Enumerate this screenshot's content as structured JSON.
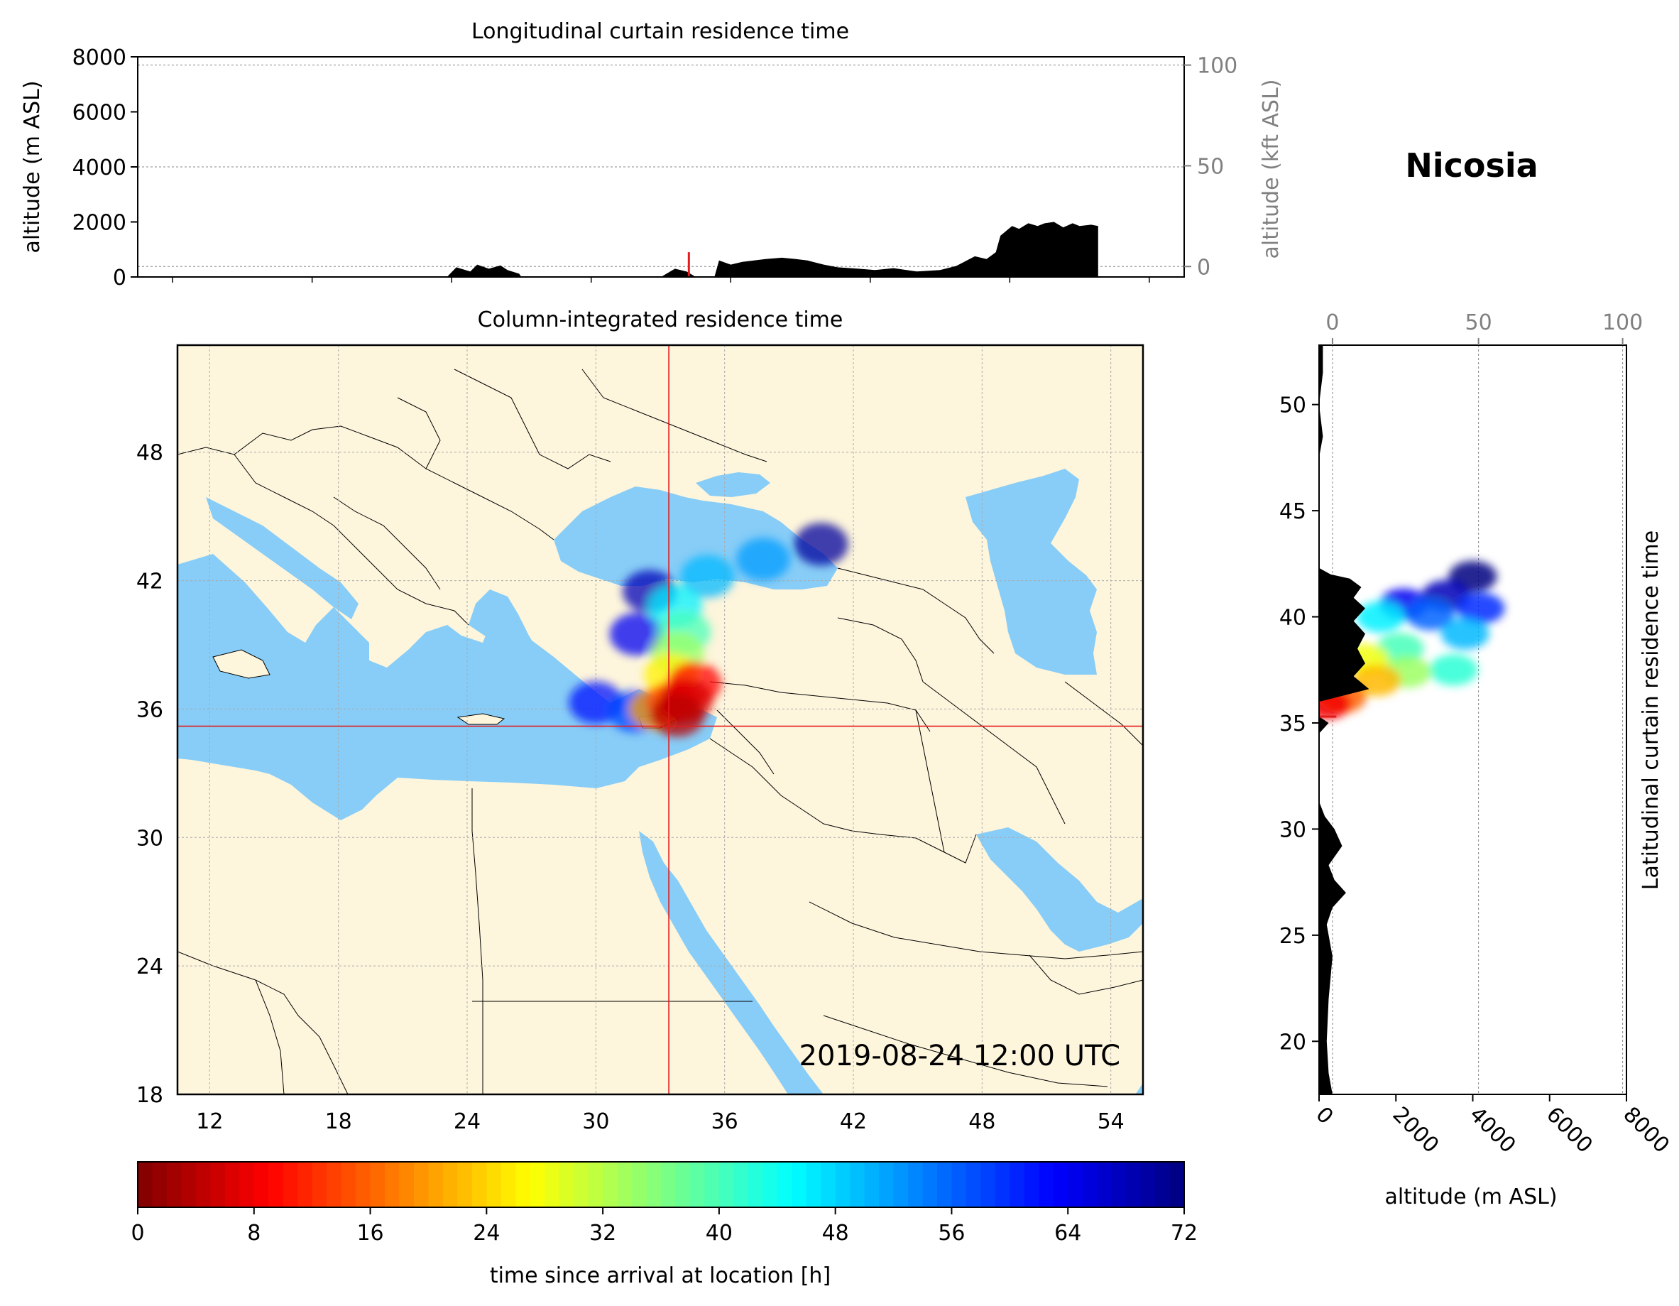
{
  "location": "Nicosia",
  "timestamp": "2019-08-24 12:00 UTC",
  "colors": {
    "land": "#fdf5dc",
    "sea": "#87cdf7",
    "crosshair": "#e41a1c",
    "terrain": "#000000",
    "secondary_axis": "#808080"
  },
  "colormap": "jet_r",
  "chart_data": [
    {
      "id": "longitudinal",
      "type": "area",
      "title": "Longitudinal curtain residence time",
      "ylabel": "altitude (m ASL)",
      "ylabel_right": "altitude (kft ASL)",
      "ylim": [
        0,
        8000
      ],
      "yticks": [
        0,
        2000,
        4000,
        6000,
        8000
      ],
      "ytick_labels": [
        "0",
        "2000",
        "4000",
        "6000",
        "8000"
      ],
      "right_ticks_kft": [
        0,
        50,
        100
      ],
      "right_tick_labels": [
        "0",
        "50",
        "100"
      ],
      "xlim": [
        10.5,
        55.5
      ],
      "terrain": {
        "x": [
          10.5,
          23.8,
          24.2,
          24.8,
          25.1,
          25.6,
          26.1,
          26.4,
          26.9,
          27.0,
          33.0,
          33.6,
          34.1,
          34.5,
          34.9,
          35.3,
          35.5,
          36.0,
          36.5,
          37.5,
          38.2,
          38.8,
          39.3,
          40.0,
          40.6,
          41.5,
          42.2,
          43.0,
          44.0,
          45.0,
          45.7,
          46.5,
          47.0,
          47.4,
          47.6,
          48.1,
          48.4,
          48.8,
          49.2,
          49.5,
          49.9,
          50.3,
          50.7,
          51.0,
          51.5,
          51.8,
          51.8,
          55.5
        ],
        "y": [
          0,
          0,
          350,
          200,
          450,
          300,
          420,
          250,
          120,
          0,
          0,
          300,
          200,
          0,
          0,
          0,
          600,
          450,
          550,
          650,
          700,
          650,
          600,
          450,
          350,
          300,
          250,
          320,
          200,
          250,
          400,
          750,
          650,
          900,
          1500,
          1850,
          1750,
          1950,
          1850,
          1950,
          2000,
          1800,
          1950,
          1850,
          1900,
          1850,
          0,
          0
        ]
      },
      "spike_x": 34.2,
      "spike_height": 900,
      "gridlines_m": [
        380,
        7700
      ]
    },
    {
      "id": "column",
      "type": "heatmap",
      "title": "Column-integrated residence time",
      "xlim": [
        10.5,
        55.5
      ],
      "ylim": [
        18,
        53
      ],
      "xticks": [
        12,
        18,
        24,
        30,
        36,
        42,
        48,
        54
      ],
      "xtick_labels": [
        "12",
        "18",
        "24",
        "30",
        "36",
        "42",
        "48",
        "54"
      ],
      "yticks": [
        18,
        24,
        30,
        36,
        42,
        48
      ],
      "ytick_labels": [
        "18",
        "24",
        "30",
        "36",
        "42",
        "48"
      ],
      "location": {
        "lon": 33.4,
        "lat": 35.2
      },
      "plume": [
        {
          "lon": 33.8,
          "lat": 35.7,
          "hours": 4
        },
        {
          "lon": 34.2,
          "lat": 36.4,
          "hours": 6
        },
        {
          "lon": 34.6,
          "lat": 37.2,
          "hours": 9
        },
        {
          "lon": 33.6,
          "lat": 36.3,
          "hours": 14
        },
        {
          "lon": 32.8,
          "lat": 36.0,
          "hours": 20
        },
        {
          "lon": 33.5,
          "lat": 37.6,
          "hours": 26
        },
        {
          "lon": 33.8,
          "lat": 38.6,
          "hours": 34
        },
        {
          "lon": 34.1,
          "lat": 39.6,
          "hours": 40
        },
        {
          "lon": 33.7,
          "lat": 40.8,
          "hours": 46
        },
        {
          "lon": 35.2,
          "lat": 42.2,
          "hours": 50
        },
        {
          "lon": 37.8,
          "lat": 43.0,
          "hours": 52
        },
        {
          "lon": 31.8,
          "lat": 35.9,
          "hours": 58
        },
        {
          "lon": 30.0,
          "lat": 36.3,
          "hours": 62
        },
        {
          "lon": 31.9,
          "lat": 39.5,
          "hours": 64
        },
        {
          "lon": 32.5,
          "lat": 41.5,
          "hours": 68
        },
        {
          "lon": 40.5,
          "lat": 43.7,
          "hours": 70
        }
      ]
    },
    {
      "id": "latitudinal",
      "type": "area",
      "title": "Latitudinal curtain residence time",
      "xlabel": "altitude (m ASL)",
      "xlim": [
        0,
        8000
      ],
      "xticks": [
        0,
        2000,
        4000,
        6000,
        8000
      ],
      "xtick_labels": [
        "0",
        "2000",
        "4000",
        "6000",
        "8000"
      ],
      "top_ticks_kft": [
        0,
        50,
        100
      ],
      "top_tick_labels": [
        "0",
        "50",
        "100"
      ],
      "ylim": [
        17.5,
        52.8
      ],
      "yticks": [
        20,
        25,
        30,
        35,
        40,
        45,
        50
      ],
      "ytick_labels": [
        "20",
        "25",
        "30",
        "35",
        "40",
        "45",
        "50"
      ],
      "terrain": {
        "lat": [
          17.5,
          18.5,
          20.0,
          22.0,
          24.0,
          25.5,
          26.3,
          27.0,
          27.6,
          28.3,
          29.2,
          30.0,
          30.6,
          31.3,
          33.0,
          34.5,
          35.0,
          35.3,
          35.6,
          36.0,
          36.6,
          37.2,
          37.8,
          38.5,
          39.2,
          39.8,
          40.4,
          40.9,
          41.4,
          41.8,
          42.0,
          42.3,
          44.0,
          46.0,
          47.5,
          48.5,
          50.0,
          51.5,
          52.8
        ],
        "alt": [
          350,
          250,
          200,
          250,
          350,
          200,
          350,
          700,
          400,
          250,
          600,
          400,
          150,
          0,
          0,
          0,
          250,
          0,
          0,
          0,
          1300,
          900,
          1200,
          1000,
          1200,
          900,
          1200,
          900,
          1100,
          800,
          300,
          0,
          0,
          0,
          0,
          100,
          0,
          100,
          100
        ]
      },
      "plume": [
        {
          "alt": 200,
          "lat": 35.9,
          "hours": 8
        },
        {
          "alt": 600,
          "lat": 36.2,
          "hours": 16
        },
        {
          "alt": 1500,
          "lat": 37.0,
          "hours": 22
        },
        {
          "alt": 1200,
          "lat": 38.0,
          "hours": 28
        },
        {
          "alt": 2300,
          "lat": 37.4,
          "hours": 34
        },
        {
          "alt": 2100,
          "lat": 38.5,
          "hours": 40
        },
        {
          "alt": 3500,
          "lat": 37.5,
          "hours": 42
        },
        {
          "alt": 1600,
          "lat": 40.0,
          "hours": 46
        },
        {
          "alt": 3800,
          "lat": 39.2,
          "hours": 50
        },
        {
          "alt": 2900,
          "lat": 40.1,
          "hours": 56
        },
        {
          "alt": 4200,
          "lat": 40.4,
          "hours": 60
        },
        {
          "alt": 2200,
          "lat": 40.6,
          "hours": 64
        },
        {
          "alt": 3300,
          "lat": 41.0,
          "hours": 68
        },
        {
          "alt": 4000,
          "lat": 41.9,
          "hours": 72
        }
      ],
      "spike_lat": 35.3,
      "gridlines_m": [
        350,
        4150,
        7900
      ]
    },
    {
      "id": "colorbar",
      "type": "heatmap",
      "label": "time since arrival at location [h]",
      "range": [
        0,
        72
      ],
      "ticks": [
        0,
        8,
        16,
        24,
        32,
        40,
        48,
        56,
        64,
        72
      ],
      "tick_labels": [
        "0",
        "8",
        "16",
        "24",
        "32",
        "40",
        "48",
        "56",
        "64",
        "72"
      ]
    }
  ]
}
